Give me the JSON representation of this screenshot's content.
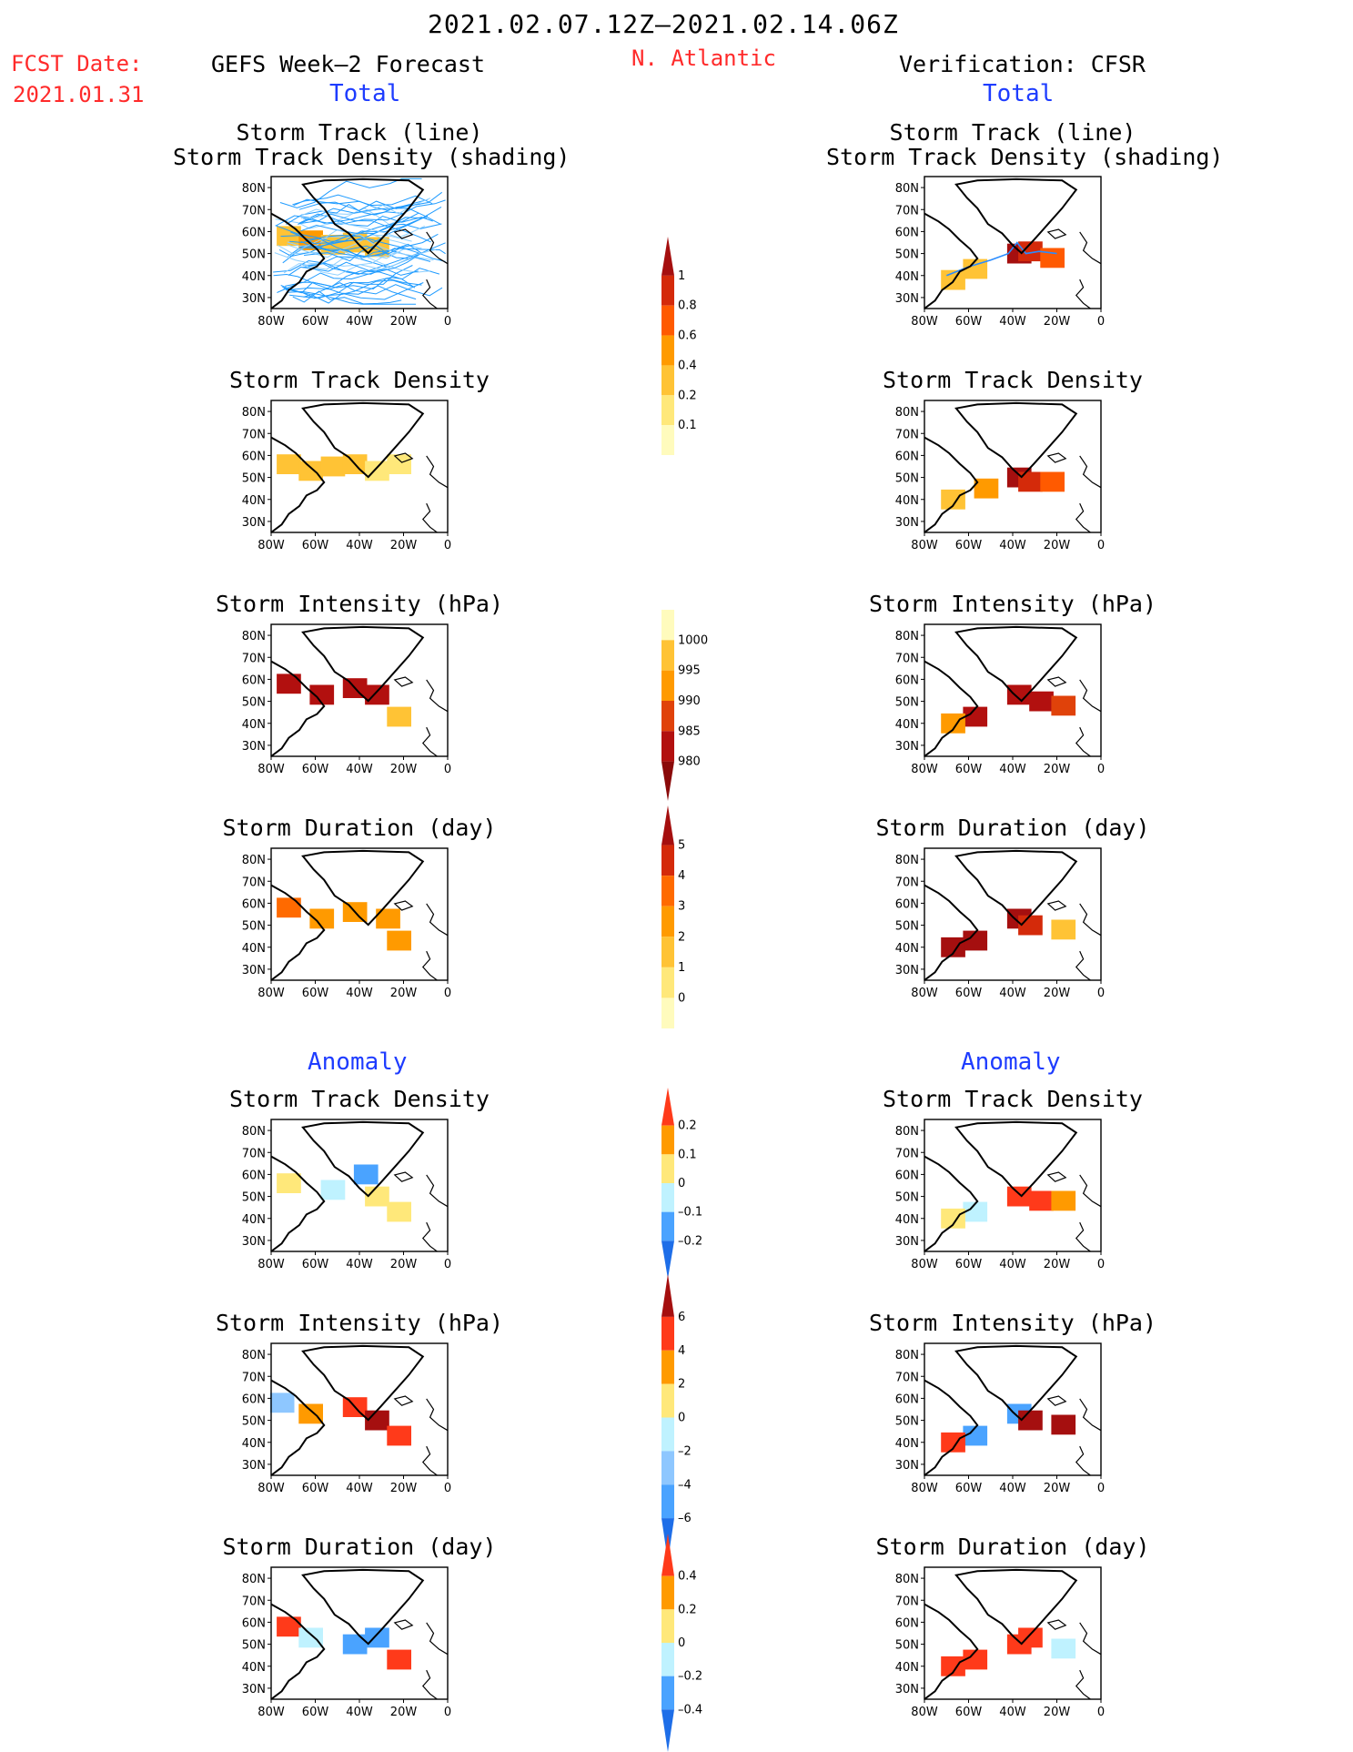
{
  "header": {
    "date_range": "2021.02.07.12Z–2021.02.14.06Z",
    "fcst_label": "FCST Date:",
    "fcst_date": "2021.01.31",
    "region": "N. Atlantic",
    "left_title": "GEFS Week–2 Forecast",
    "right_title": "Verification: CFSR"
  },
  "sections": {
    "total": "Total",
    "anomaly": "Anomaly"
  },
  "panel_titles": {
    "track_line": "Storm Track (line)",
    "track_shading": "Storm Track Density (shading)",
    "density": "Storm Track Density",
    "intensity": "Storm Intensity (hPa)",
    "duration": "Storm Duration (day)"
  },
  "map_axes": {
    "lat_labels": [
      "80N",
      "70N",
      "60N",
      "50N",
      "40N",
      "30N"
    ],
    "lon_labels": [
      "80W",
      "60W",
      "40W",
      "20W",
      "0"
    ]
  },
  "colorbars": {
    "total_density": {
      "labels": [
        "1",
        "0.8",
        "0.6",
        "0.4",
        "0.2",
        "0.1"
      ],
      "colors": [
        "#a50f0f",
        "#d42a0a",
        "#ff5a00",
        "#ff9a00",
        "#ffc335",
        "#ffe87a",
        "#fffbbd"
      ]
    },
    "total_intensity": {
      "labels": [
        "1000",
        "995",
        "990",
        "985",
        "980"
      ],
      "colors": [
        "#fffbbd",
        "#ffc335",
        "#ff9a00",
        "#e0420a",
        "#b2100f",
        "#8a0a0a"
      ]
    },
    "total_duration": {
      "labels": [
        "5",
        "4",
        "3",
        "2",
        "1",
        "0"
      ],
      "colors": [
        "#a50f0f",
        "#d42a0a",
        "#ff6a00",
        "#ff9a00",
        "#ffc335",
        "#ffe87a",
        "#fffbbd"
      ]
    },
    "anom_density": {
      "labels": [
        "0.2",
        "0.1",
        "0",
        "–0.1",
        "–0.2"
      ],
      "colors": [
        "#ff3a1a",
        "#ff9a00",
        "#ffe87a",
        "#bff2ff",
        "#4aa3ff",
        "#1e6ee8"
      ]
    },
    "anom_intensity": {
      "labels": [
        "6",
        "4",
        "2",
        "0",
        "–2",
        "–4",
        "–6"
      ],
      "colors": [
        "#a50f0f",
        "#ff3a1a",
        "#ff9a00",
        "#ffe87a",
        "#bff2ff",
        "#8ec7ff",
        "#4aa3ff",
        "#1e6ee8"
      ]
    },
    "anom_duration": {
      "labels": [
        "0.4",
        "0.2",
        "0",
        "–0.2",
        "–0.4"
      ],
      "colors": [
        "#ff3a1a",
        "#ff9a00",
        "#ffe87a",
        "#bff2ff",
        "#4aa3ff",
        "#1e6ee8"
      ]
    }
  },
  "chart_data": [
    {
      "type": "heatmap",
      "name": "GEFS total track (line) + density",
      "region": "N. Atlantic",
      "xlim": [
        "80W",
        "0"
      ],
      "ylim": [
        "25N",
        "85N"
      ],
      "overlay": "ensemble storm track lines",
      "cells": [
        [
          -75,
          60,
          0.3
        ],
        [
          -65,
          58,
          0.4
        ],
        [
          -55,
          56,
          0.3
        ],
        [
          -45,
          57,
          0.3
        ],
        [
          -35,
          55,
          0.3
        ]
      ]
    },
    {
      "type": "heatmap",
      "name": "CFSR total track (line) + density",
      "region": "N. Atlantic",
      "xlim": [
        "80W",
        "0"
      ],
      "ylim": [
        "25N",
        "85N"
      ],
      "overlay": "observed storm track line",
      "cells": [
        [
          -40,
          52,
          1.0
        ],
        [
          -35,
          53,
          0.8
        ],
        [
          -25,
          50,
          0.6
        ],
        [
          -60,
          45,
          0.3
        ],
        [
          -70,
          40,
          0.2
        ]
      ]
    },
    {
      "type": "heatmap",
      "name": "GEFS storm track density (total)",
      "cells": [
        [
          -75,
          58,
          0.2
        ],
        [
          -65,
          55,
          0.3
        ],
        [
          -55,
          57,
          0.2
        ],
        [
          -45,
          58,
          0.2
        ],
        [
          -35,
          55,
          0.15
        ],
        [
          -25,
          58,
          0.1
        ]
      ]
    },
    {
      "type": "heatmap",
      "name": "CFSR storm track density (total)",
      "cells": [
        [
          -40,
          52,
          1.0
        ],
        [
          -35,
          50,
          0.8
        ],
        [
          -25,
          50,
          0.6
        ],
        [
          -55,
          47,
          0.4
        ],
        [
          -70,
          42,
          0.2
        ]
      ]
    },
    {
      "type": "heatmap",
      "name": "GEFS storm intensity (hPa, total)",
      "cells": [
        [
          -75,
          60,
          982
        ],
        [
          -60,
          55,
          980
        ],
        [
          -45,
          58,
          981
        ],
        [
          -35,
          55,
          982
        ],
        [
          -25,
          45,
          995
        ]
      ]
    },
    {
      "type": "heatmap",
      "name": "CFSR storm intensity (hPa, total)",
      "cells": [
        [
          -40,
          55,
          980
        ],
        [
          -30,
          52,
          980
        ],
        [
          -20,
          50,
          985
        ],
        [
          -60,
          45,
          980
        ],
        [
          -70,
          42,
          990
        ]
      ]
    },
    {
      "type": "heatmap",
      "name": "GEFS storm duration (day, total)",
      "cells": [
        [
          -75,
          60,
          3
        ],
        [
          -60,
          55,
          2
        ],
        [
          -45,
          58,
          2
        ],
        [
          -30,
          55,
          2
        ],
        [
          -25,
          45,
          2
        ]
      ]
    },
    {
      "type": "heatmap",
      "name": "CFSR storm duration (day, total)",
      "cells": [
        [
          -40,
          55,
          5
        ],
        [
          -35,
          52,
          4
        ],
        [
          -20,
          50,
          1
        ],
        [
          -60,
          45,
          5
        ],
        [
          -70,
          42,
          5
        ]
      ]
    },
    {
      "type": "heatmap",
      "name": "GEFS storm track density (anomaly)",
      "cells": [
        [
          -75,
          58,
          0.05
        ],
        [
          -55,
          55,
          -0.02
        ],
        [
          -40,
          62,
          -0.15
        ],
        [
          -35,
          52,
          0.05
        ],
        [
          -25,
          45,
          0.05
        ]
      ]
    },
    {
      "type": "heatmap",
      "name": "CFSR storm track density (anomaly)",
      "cells": [
        [
          -40,
          52,
          0.2
        ],
        [
          -30,
          50,
          0.2
        ],
        [
          -20,
          50,
          0.1
        ],
        [
          -60,
          45,
          -0.05
        ],
        [
          -70,
          42,
          0.05
        ]
      ]
    },
    {
      "type": "heatmap",
      "name": "GEFS storm intensity (hPa, anomaly)",
      "cells": [
        [
          -78,
          60,
          -4
        ],
        [
          -65,
          55,
          2
        ],
        [
          -45,
          58,
          4
        ],
        [
          -35,
          52,
          6
        ],
        [
          -25,
          45,
          4
        ]
      ]
    },
    {
      "type": "heatmap",
      "name": "CFSR storm intensity (hPa, anomaly)",
      "cells": [
        [
          -40,
          55,
          -6
        ],
        [
          -35,
          52,
          6
        ],
        [
          -20,
          50,
          6
        ],
        [
          -60,
          45,
          -6
        ],
        [
          -70,
          42,
          4
        ]
      ]
    },
    {
      "type": "heatmap",
      "name": "GEFS storm duration (day, anomaly)",
      "cells": [
        [
          -75,
          60,
          0.4
        ],
        [
          -65,
          55,
          -0.1
        ],
        [
          -45,
          52,
          -0.4
        ],
        [
          -35,
          55,
          -0.3
        ],
        [
          -25,
          45,
          0.4
        ]
      ]
    },
    {
      "type": "heatmap",
      "name": "CFSR storm duration (day, anomaly)",
      "cells": [
        [
          -40,
          52,
          0.4
        ],
        [
          -35,
          55,
          0.4
        ],
        [
          -20,
          50,
          -0.2
        ],
        [
          -60,
          45,
          0.4
        ],
        [
          -70,
          42,
          0.4
        ]
      ]
    }
  ]
}
